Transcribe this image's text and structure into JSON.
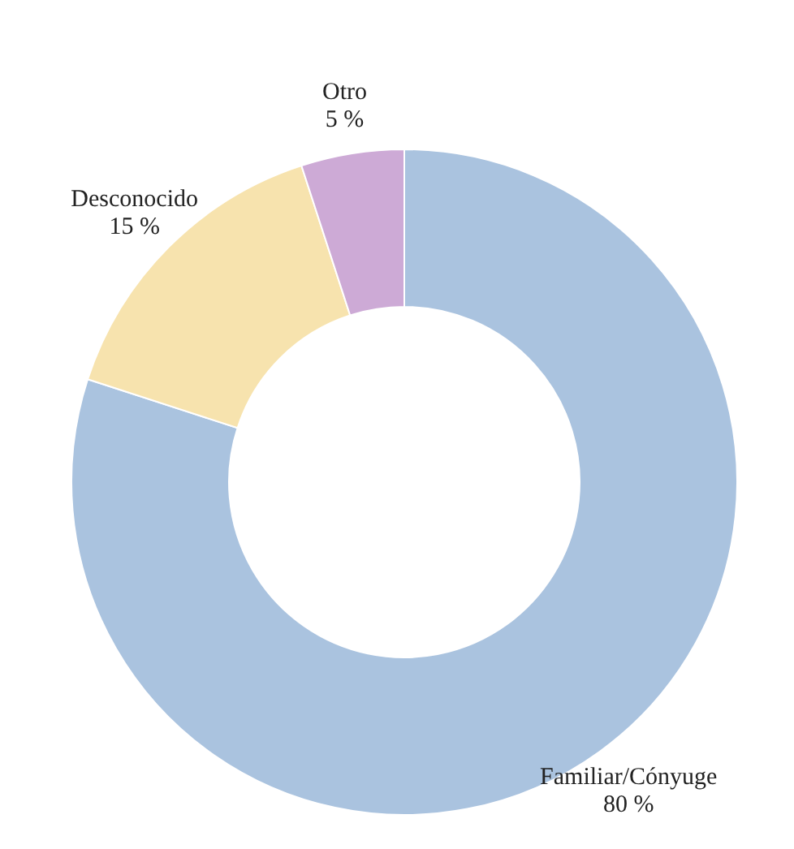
{
  "chart_data": {
    "type": "donut",
    "categories": [
      "Familiar/Cónyuge",
      "Desconocido",
      "Otro"
    ],
    "values": [
      80,
      15,
      5
    ],
    "value_labels": [
      "80 %",
      "15 %",
      "5 %"
    ],
    "colors": [
      "#aac3df",
      "#f7e3ae",
      "#cdaad6"
    ]
  }
}
